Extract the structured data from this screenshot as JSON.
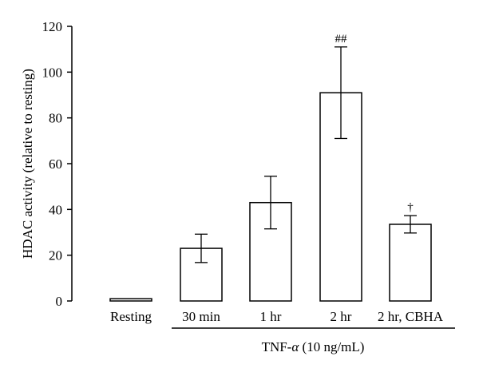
{
  "chart_data": {
    "type": "bar",
    "categories": [
      "Resting",
      "30 min",
      "1 hr",
      "2 hr",
      "2 hr, CBHA"
    ],
    "values": [
      1,
      23,
      43,
      91,
      33.5
    ],
    "errors": [
      0,
      6.2,
      11.5,
      20,
      3.8
    ],
    "annotations": [
      "",
      "",
      "",
      "##",
      "†"
    ],
    "ylabel": "HDAC activity (relative to resting)",
    "ylim": [
      0,
      120
    ],
    "yticks": [
      "0",
      "20",
      "40",
      "60",
      "80",
      "100",
      "120"
    ],
    "group_label": "TNF-α (10 ng/mL)",
    "group_label_parts": [
      "TNF-",
      "α",
      " (10 ng/mL)"
    ],
    "grid": false
  }
}
